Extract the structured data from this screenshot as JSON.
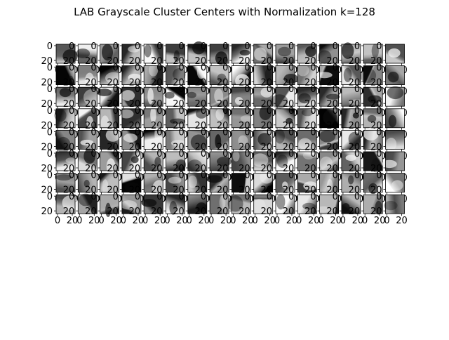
{
  "chart_data": {
    "type": "heatmap",
    "title": "LAB Grayscale Cluster Centers with Normalization k=128",
    "layout": {
      "rows": 8,
      "cols": 16
    },
    "axis_ticks": {
      "x": [
        "0",
        "20"
      ],
      "y": [
        "0",
        "20"
      ]
    },
    "xlim": [
      0,
      24
    ],
    "ylim": [
      24,
      0
    ],
    "colormap": "gray",
    "panel_count": 128,
    "grid": false
  }
}
